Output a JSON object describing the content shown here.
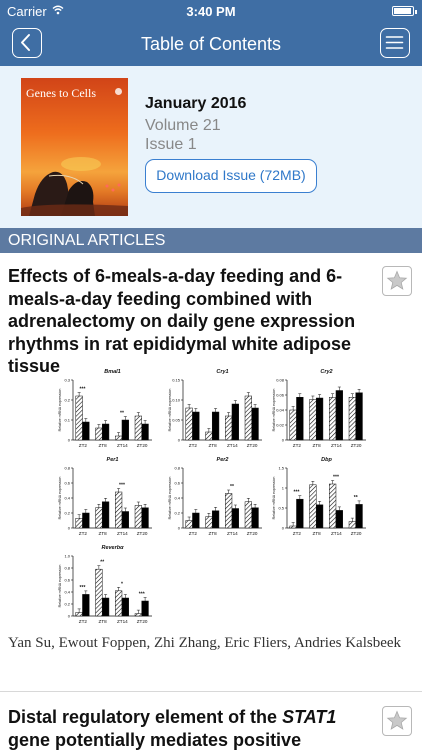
{
  "status_bar": {
    "carrier": "Carrier",
    "time": "3:40 PM"
  },
  "navbar": {
    "title": "Table of Contents"
  },
  "issue": {
    "cover_title": "Genes to Cells",
    "month": "January 2016",
    "volume": "Volume 21",
    "issue": "Issue 1",
    "download_label": "Download Issue (72MB)"
  },
  "section": {
    "label": "ORIGINAL ARTICLES"
  },
  "articles": [
    {
      "title": "Effects of 6-meals-a-day feeding and 6-meals-a-day feeding combined with adrenalectomy on daily gene expression rhythms in rat epididymal white adipose tissue",
      "authors": "Yan Su, Ewout Foppen, Zhi Zhang, Eric Fliers, Andries Kalsbeek"
    },
    {
      "title_plain": "Distal regulatory element of the ",
      "title_italic": "STAT1",
      "title_rest": " gene potentially mediates positive"
    }
  ],
  "figure": {
    "ylabel": "Relative mRNA expression",
    "xticks": [
      "ZT2",
      "ZT8",
      "ZT14",
      "ZT20"
    ],
    "panels": [
      {
        "gene": "Bmal1",
        "yticks": [
          "0.3",
          "0.2",
          "0.1",
          "0"
        ],
        "max": 0.3,
        "sig": [
          "***",
          "",
          "**",
          ""
        ],
        "values": [
          [
            0.22,
            0.09
          ],
          [
            0.06,
            0.08
          ],
          [
            0.02,
            0.1
          ],
          [
            0.12,
            0.08
          ]
        ]
      },
      {
        "gene": "Cry1",
        "yticks": [
          "0.15",
          "0.10",
          "0.05",
          "0"
        ],
        "max": 0.15,
        "sig": [
          "",
          "",
          "",
          ""
        ],
        "values": [
          [
            0.08,
            0.07
          ],
          [
            0.02,
            0.07
          ],
          [
            0.06,
            0.09
          ],
          [
            0.11,
            0.08
          ]
        ]
      },
      {
        "gene": "Cry2",
        "yticks": [
          "0.08",
          "0.06",
          "0.04",
          "0.02",
          "0"
        ],
        "max": 0.08,
        "sig": [
          "",
          "",
          "",
          ""
        ],
        "values": [
          [
            0.04,
            0.057
          ],
          [
            0.054,
            0.056
          ],
          [
            0.057,
            0.066
          ],
          [
            0.057,
            0.063
          ]
        ]
      },
      {
        "gene": "Per1",
        "yticks": [
          "0.8",
          "0.6",
          "0.4",
          "0.2",
          "0"
        ],
        "max": 0.8,
        "sig": [
          "",
          "",
          "***",
          ""
        ],
        "values": [
          [
            0.13,
            0.2
          ],
          [
            0.27,
            0.35
          ],
          [
            0.48,
            0.22
          ],
          [
            0.3,
            0.27
          ]
        ]
      },
      {
        "gene": "Per2",
        "yticks": [
          "0.8",
          "0.6",
          "0.4",
          "0.2",
          "0"
        ],
        "max": 0.8,
        "sig": [
          "",
          "",
          "**",
          ""
        ],
        "values": [
          [
            0.1,
            0.2
          ],
          [
            0.15,
            0.23
          ],
          [
            0.46,
            0.26
          ],
          [
            0.35,
            0.27
          ]
        ]
      },
      {
        "gene": "Dbp",
        "yticks": [
          "1.5",
          "1",
          "0.5",
          "0"
        ],
        "max": 1.5,
        "sig": [
          "***",
          "",
          "***",
          "**"
        ],
        "values": [
          [
            0.05,
            0.72
          ],
          [
            1.08,
            0.58
          ],
          [
            1.1,
            0.44
          ],
          [
            0.16,
            0.59
          ]
        ]
      },
      {
        "gene": "Reverbα",
        "yticks": [
          "1.0",
          "0.8",
          "0.6",
          "0.4",
          "0.2",
          "0"
        ],
        "max": 1.0,
        "sig": [
          "***",
          "**",
          "*",
          "***"
        ],
        "values": [
          [
            0.06,
            0.36
          ],
          [
            0.78,
            0.3
          ],
          [
            0.42,
            0.3
          ],
          [
            0.04,
            0.25
          ]
        ]
      }
    ]
  }
}
